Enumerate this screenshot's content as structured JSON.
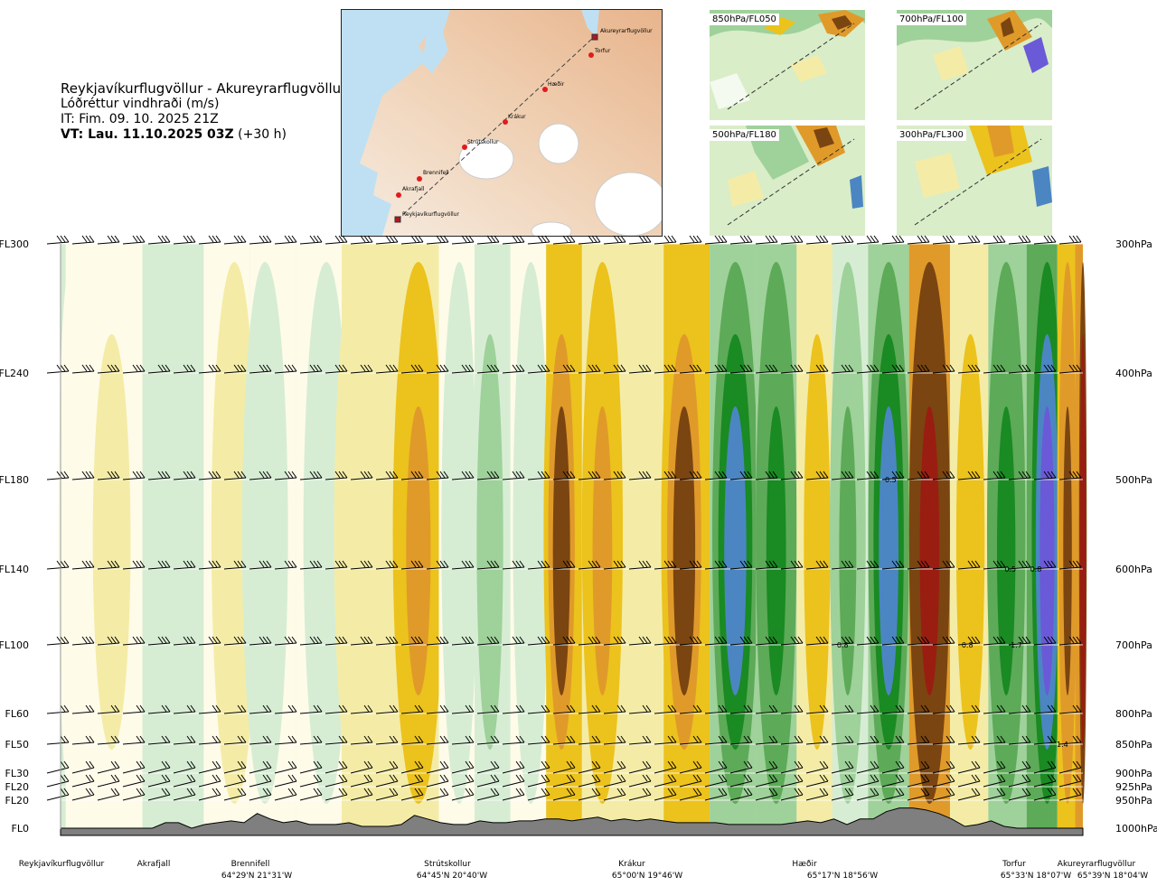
{
  "title": {
    "route": "Reykjavíkurflugvöllur - Akureyrarflugvöllur",
    "parameter": "Lóðréttur vindhraði (m/s)",
    "issue": "IT: Fim. 09. 10. 2025 21Z",
    "valid_bold": "VT: Lau. 11.10.2025 03Z",
    "valid_offset": "(+30 h)"
  },
  "map": {
    "waypoints": [
      "Reykjavíkurflugvöllur",
      "Akrafjall",
      "Brennifell",
      "Strútskollur",
      "Krákur",
      "Hæðir",
      "Torfur",
      "Akureyrarflugvöllur"
    ]
  },
  "panels": [
    {
      "label": "850hPa/FL050"
    },
    {
      "label": "700hPa/FL100"
    },
    {
      "label": "500hPa/FL180"
    },
    {
      "label": "300hPa/FL300"
    }
  ],
  "colors": {
    "strong_down": "#9a1d12",
    "down_3": "#7a4510",
    "down_2": "#e09a2a",
    "down_1": "#ecc21c",
    "down_0": "#f4eca6",
    "neutral": "#fffbe9",
    "up_0": "#d6edd4",
    "up_1": "#9fd19a",
    "up_2": "#5daa58",
    "up_3": "#1a8a23",
    "up_4": "#4b86c2",
    "strong_up": "#6a5ad8",
    "terrain": "#7f7f7f"
  },
  "chart_data": {
    "type": "heatmap",
    "title": "Reykjavíkurflugvöllur - Akureyrarflugvöllur",
    "subtitle": "Lóðréttur vindhraði (m/s)",
    "xlabel": "",
    "ylabel": "",
    "flight_levels": [
      {
        "label": "FL300",
        "hpa": "300hPa"
      },
      {
        "label": "FL240",
        "hpa": "400hPa"
      },
      {
        "label": "FL180",
        "hpa": "500hPa"
      },
      {
        "label": "FL140",
        "hpa": "600hPa"
      },
      {
        "label": "FL100",
        "hpa": "700hPa"
      },
      {
        "label": "FL60",
        "hpa": "800hPa"
      },
      {
        "label": "FL50",
        "hpa": "850hPa"
      },
      {
        "label": "FL30",
        "hpa": "900hPa"
      },
      {
        "label": "FL20",
        "hpa": "925hPa"
      },
      {
        "label": "FL20",
        "hpa": "950hPa"
      },
      {
        "label": "FL0",
        "hpa": "1000hPa"
      }
    ],
    "locations": [
      {
        "name": "Reykjavíkurflugvöllur",
        "coord": ""
      },
      {
        "name": "Akrafjall",
        "coord": ""
      },
      {
        "name": "Brennifell",
        "coord": "64°29'N 21°31'W"
      },
      {
        "name": "Strútskollur",
        "coord": "64°45'N 20°40'W"
      },
      {
        "name": "Krákur",
        "coord": "65°00'N 19°46'W"
      },
      {
        "name": "Hæðir",
        "coord": "65°17'N 18°56'W"
      },
      {
        "name": "Torfur",
        "coord": "65°33'N 18°07'W"
      },
      {
        "name": "Akureyrarflugvöllur",
        "coord": "65°39'N 18°04'W"
      }
    ],
    "bands": [
      {
        "pos": 0.01,
        "value": 0.05
      },
      {
        "pos": 0.05,
        "value": -0.15
      },
      {
        "pos": 0.11,
        "value": 0.35
      },
      {
        "pos": 0.17,
        "value": -0.25
      },
      {
        "pos": 0.2,
        "value": 0.3
      },
      {
        "pos": 0.26,
        "value": 0.2
      },
      {
        "pos": 0.29,
        "value": -0.4
      },
      {
        "pos": 0.35,
        "value": -0.9
      },
      {
        "pos": 0.39,
        "value": 0.25
      },
      {
        "pos": 0.42,
        "value": 0.6
      },
      {
        "pos": 0.46,
        "value": 0.2
      },
      {
        "pos": 0.49,
        "value": -1.6
      },
      {
        "pos": 0.53,
        "value": -1.0
      },
      {
        "pos": 0.57,
        "value": -0.4
      },
      {
        "pos": 0.61,
        "value": -1.6
      },
      {
        "pos": 0.66,
        "value": 2.6
      },
      {
        "pos": 0.7,
        "value": 1.6
      },
      {
        "pos": 0.74,
        "value": -0.8
      },
      {
        "pos": 0.77,
        "value": 0.9
      },
      {
        "pos": 0.81,
        "value": 2.5
      },
      {
        "pos": 0.85,
        "value": -3.2
      },
      {
        "pos": 0.89,
        "value": -0.8
      },
      {
        "pos": 0.925,
        "value": 1.7
      },
      {
        "pos": 0.965,
        "value": 3.5
      },
      {
        "pos": 0.985,
        "value": -1.8
      },
      {
        "pos": 1.0,
        "value": -3.8
      }
    ],
    "value_labels": [
      {
        "text": "0.5",
        "x_frac": 0.812,
        "level_index": 2
      },
      {
        "text": "0.5",
        "x_frac": 0.929,
        "level_index": 3
      },
      {
        "text": "0.8",
        "x_frac": 0.954,
        "level_index": 3
      },
      {
        "text": "0.8",
        "x_frac": 0.765,
        "level_index": 4
      },
      {
        "text": "0.8",
        "x_frac": 0.887,
        "level_index": 4
      },
      {
        "text": "1.7",
        "x_frac": 0.935,
        "level_index": 4
      },
      {
        "text": "1.4",
        "x_frac": 0.98,
        "level_index": 6
      }
    ],
    "terrain_elevation_fl": [
      0,
      0,
      0,
      0,
      0,
      0,
      0,
      0,
      3,
      3,
      0,
      2,
      3,
      4,
      3,
      8,
      5,
      3,
      4,
      2,
      2,
      2,
      3,
      1,
      1,
      1,
      2,
      7,
      5,
      3,
      2,
      2,
      4,
      3,
      3,
      4,
      4,
      5,
      5,
      4,
      5,
      6,
      4,
      5,
      4,
      5,
      4,
      3,
      3,
      3,
      3,
      2,
      2,
      2,
      2,
      2,
      3,
      4,
      3,
      5,
      2,
      5,
      5,
      9,
      11,
      11,
      10,
      8,
      5,
      1,
      2,
      4,
      1,
      0,
      0,
      0,
      0,
      0,
      0
    ]
  }
}
